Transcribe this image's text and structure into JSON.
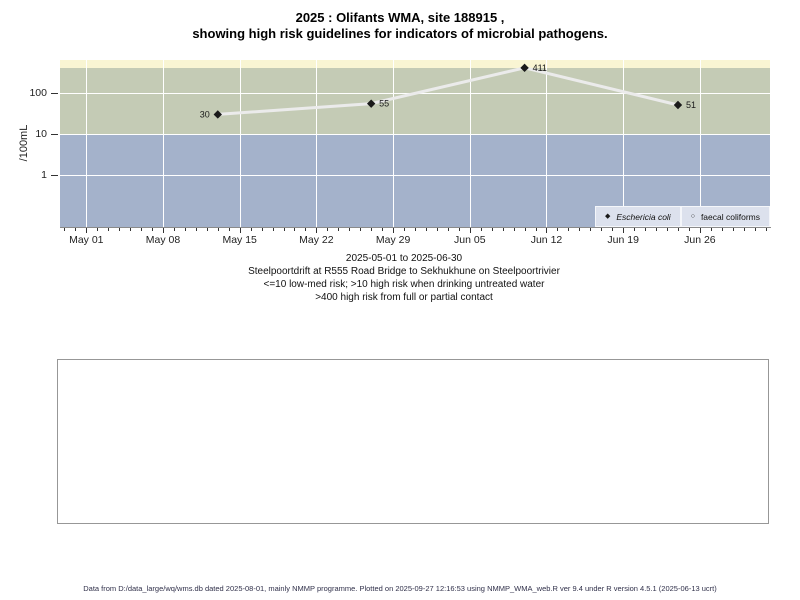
{
  "title": {
    "line1": "2025 : Olifants WMA, site 188915 ,",
    "line2": "showing high risk guidelines for indicators of microbial pathogens."
  },
  "chart_data": {
    "type": "line",
    "title": "2025 : Olifants WMA, site 188915 , showing high risk guidelines for indicators of microbial pathogens.",
    "xlabel": "",
    "ylabel": "/100mL",
    "y_scale": "log",
    "y_ticks": [
      100,
      10,
      1
    ],
    "x_tick_labels": [
      "May 01",
      "May 08",
      "May 15",
      "May 22",
      "May 29",
      "Jun 05",
      "Jun 12",
      "Jun 19",
      "Jun 26"
    ],
    "x_range": [
      "2025-05-01",
      "2025-06-30"
    ],
    "grid": true,
    "legend_position": "bottom-right",
    "series": [
      {
        "name": "Eschericia coli",
        "marker": "filled-diamond",
        "line_color": "#ebebeb",
        "marker_color": "#1a1a1a",
        "points": [
          {
            "date": "2025-05-13",
            "value": 30,
            "label": "30",
            "label_side": "left"
          },
          {
            "date": "2025-05-27",
            "value": 55,
            "label": "55",
            "label_side": "right"
          },
          {
            "date": "2025-06-10",
            "value": 411,
            "label": "411",
            "label_side": "right"
          },
          {
            "date": "2025-06-24",
            "value": 51,
            "label": "51",
            "label_side": "right"
          }
        ]
      },
      {
        "name": "faecal coliforms",
        "marker": "open-circle",
        "points": []
      }
    ],
    "bands": [
      {
        "name": "high risk from full or partial contact",
        "min": 400,
        "color": "#f9f5d3"
      },
      {
        "name": "high risk when drinking untreated water",
        "min": 10,
        "max": 400,
        "color": "#c4cbb5"
      },
      {
        "name": "low-med risk",
        "max": 10,
        "color": "#a4b2cb"
      }
    ]
  },
  "legend": {
    "items": [
      {
        "label": "Eschericia coli",
        "marker": "filled-diamond"
      },
      {
        "label": "faecal coliforms",
        "marker": "open-circle"
      }
    ]
  },
  "caption": {
    "line1": "2025-05-01 to 2025-06-30",
    "line2": "Steelpoortdrift at R555 Road Bridge to Sekhukhune on Steelpoortrivier",
    "line3": "<=10 low-med risk; >10 high risk when drinking untreated water",
    "line4": ">400 high risk from full or partial contact"
  },
  "footer": {
    "text": "Data from D:/data_large/wq/wms.db dated 2025-08-01, mainly NMMP programme. Plotted on 2025-09-27 12:16:53 using NMMP_WMA_web.R ver 9.4 under R version 4.5.1 (2025-06-13 ucrt)"
  }
}
